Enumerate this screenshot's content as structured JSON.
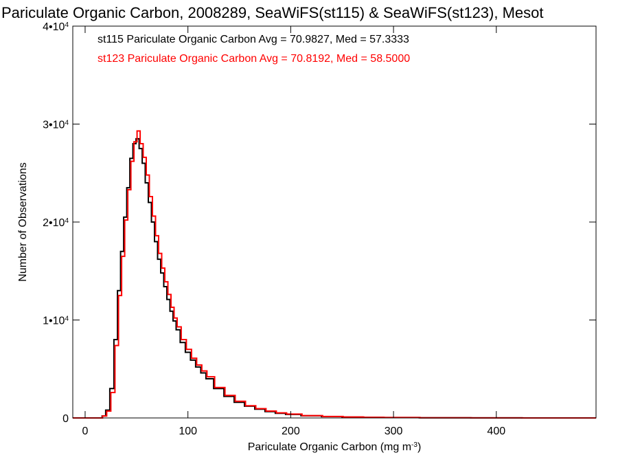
{
  "chart_data": {
    "type": "line",
    "title": "Pariculate Organic Carbon, 2008289, SeaWiFS(st115) & SeaWiFS(st123), Mesot",
    "xlabel": {
      "base": "Pariculate Organic Carbon (mg m",
      "sup": "-3",
      "close": ")"
    },
    "ylabel": "Number of Observations",
    "xlim": [
      -12,
      497
    ],
    "ylim": [
      0,
      40000
    ],
    "x_ticks": [
      {
        "value": 0,
        "label": "0"
      },
      {
        "value": 100,
        "label": "100"
      },
      {
        "value": 200,
        "label": "200"
      },
      {
        "value": 300,
        "label": "300"
      },
      {
        "value": 400,
        "label": "400"
      }
    ],
    "y_ticks": [
      {
        "value": 0,
        "base": "0",
        "sup": ""
      },
      {
        "value": 10000,
        "base": "1•10",
        "sup": "4"
      },
      {
        "value": 20000,
        "base": "2•10",
        "sup": "4"
      },
      {
        "value": 30000,
        "base": "3•10",
        "sup": "4"
      },
      {
        "value": 40000,
        "base": "4•10",
        "sup": "4"
      }
    ],
    "legend_position": "top-left",
    "series": [
      {
        "name": "st115",
        "color": "#000000",
        "annotation": "st115 Pariculate Organic Carbon Avg = 70.9827, Med = 57.3333",
        "points": [
          [
            -12,
            0
          ],
          [
            15,
            0
          ],
          [
            18,
            200
          ],
          [
            22,
            800
          ],
          [
            26,
            3000
          ],
          [
            30,
            8000
          ],
          [
            33,
            13000
          ],
          [
            36,
            17000
          ],
          [
            39,
            20500
          ],
          [
            42,
            23500
          ],
          [
            45,
            26500
          ],
          [
            48,
            28000
          ],
          [
            51,
            28500
          ],
          [
            54,
            27500
          ],
          [
            57,
            26000
          ],
          [
            60,
            24000
          ],
          [
            63,
            22000
          ],
          [
            66,
            20000
          ],
          [
            69,
            18000
          ],
          [
            72,
            16200
          ],
          [
            75,
            14800
          ],
          [
            78,
            13400
          ],
          [
            81,
            12100
          ],
          [
            84,
            10900
          ],
          [
            87,
            9900
          ],
          [
            90,
            9000
          ],
          [
            95,
            7700
          ],
          [
            100,
            6700
          ],
          [
            105,
            5900
          ],
          [
            110,
            5200
          ],
          [
            115,
            4600
          ],
          [
            120,
            4000
          ],
          [
            130,
            3000
          ],
          [
            140,
            2200
          ],
          [
            150,
            1600
          ],
          [
            160,
            1200
          ],
          [
            170,
            900
          ],
          [
            180,
            650
          ],
          [
            190,
            480
          ],
          [
            200,
            360
          ],
          [
            220,
            220
          ],
          [
            240,
            140
          ],
          [
            260,
            90
          ],
          [
            280,
            60
          ],
          [
            300,
            40
          ],
          [
            350,
            18
          ],
          [
            400,
            8
          ],
          [
            450,
            3
          ],
          [
            497,
            0
          ]
        ]
      },
      {
        "name": "st123",
        "color": "#ff0000",
        "annotation": "st123 Pariculate Organic Carbon Avg = 70.8192, Med = 58.5000",
        "points": [
          [
            -12,
            0
          ],
          [
            15,
            0
          ],
          [
            19,
            200
          ],
          [
            23,
            700
          ],
          [
            27,
            2600
          ],
          [
            31,
            7400
          ],
          [
            34,
            12500
          ],
          [
            37,
            16500
          ],
          [
            40,
            20200
          ],
          [
            43,
            23300
          ],
          [
            46,
            26200
          ],
          [
            49,
            28200
          ],
          [
            52,
            29300
          ],
          [
            55,
            28000
          ],
          [
            58,
            26600
          ],
          [
            61,
            24800
          ],
          [
            64,
            22600
          ],
          [
            67,
            20600
          ],
          [
            70,
            18600
          ],
          [
            73,
            16800
          ],
          [
            76,
            15300
          ],
          [
            79,
            13900
          ],
          [
            82,
            12600
          ],
          [
            85,
            11300
          ],
          [
            88,
            10200
          ],
          [
            91,
            9300
          ],
          [
            96,
            8000
          ],
          [
            101,
            7000
          ],
          [
            106,
            6100
          ],
          [
            111,
            5400
          ],
          [
            116,
            4800
          ],
          [
            121,
            4200
          ],
          [
            131,
            3100
          ],
          [
            141,
            2300
          ],
          [
            151,
            1700
          ],
          [
            161,
            1250
          ],
          [
            171,
            950
          ],
          [
            181,
            700
          ],
          [
            191,
            520
          ],
          [
            201,
            390
          ],
          [
            221,
            240
          ],
          [
            241,
            150
          ],
          [
            261,
            95
          ],
          [
            281,
            62
          ],
          [
            301,
            42
          ],
          [
            351,
            19
          ],
          [
            401,
            9
          ],
          [
            451,
            3
          ],
          [
            497,
            0
          ]
        ]
      }
    ]
  }
}
